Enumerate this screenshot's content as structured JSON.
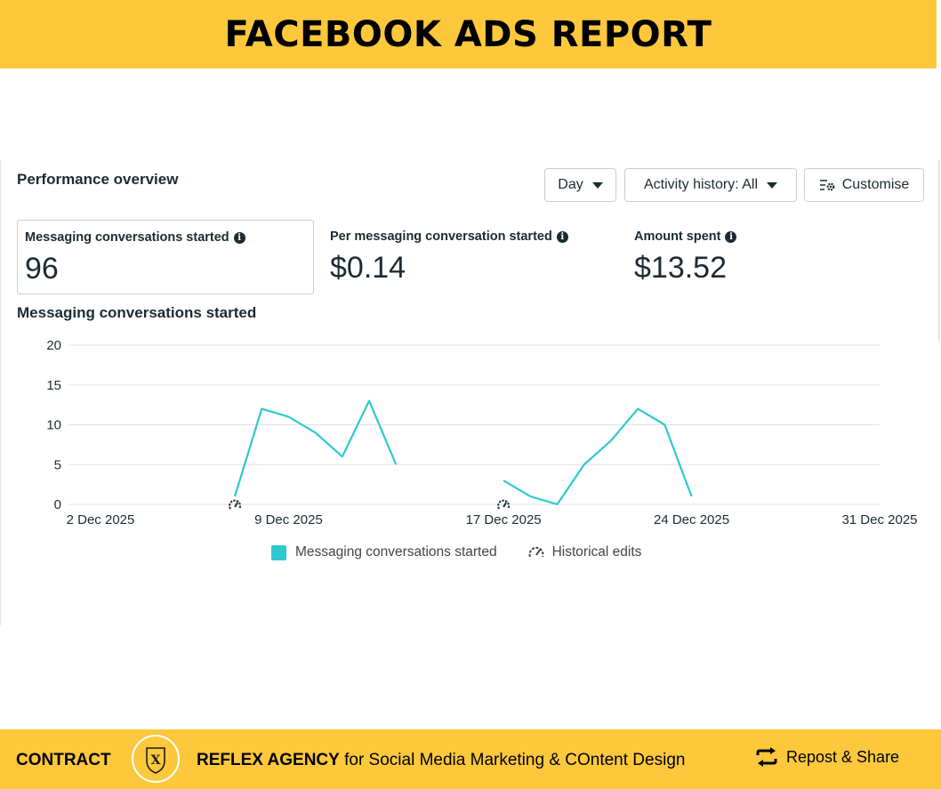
{
  "header": {
    "title": "FACEBOOK ADS REPORT"
  },
  "panel": {
    "title": "Performance overview",
    "buttons": {
      "day": "Day",
      "activity": "Activity history: All",
      "customise": "Customise"
    },
    "metrics": [
      {
        "label": "Messaging conversations started",
        "value": "96"
      },
      {
        "label": "Per messaging conversation started",
        "value": "$0.14"
      },
      {
        "label": "Amount spent",
        "value": "$13.52"
      }
    ]
  },
  "chart_data": {
    "type": "line",
    "title": "Messaging conversations started",
    "x_tick_labels": [
      "2 Dec 2025",
      "9 Dec 2025",
      "17 Dec 2025",
      "24 Dec 2025",
      "31 Dec 2025"
    ],
    "y_tick_labels": [
      "0",
      "5",
      "10",
      "15",
      "20"
    ],
    "ylim": [
      0,
      20
    ],
    "xlim_days": [
      2,
      31
    ],
    "grid": true,
    "series": [
      {
        "name": "Messaging conversations started",
        "color": "#2ec9cf",
        "segments": [
          {
            "x": [
              7,
              8,
              9,
              10,
              11,
              12,
              13
            ],
            "y": [
              1,
              12,
              11,
              9,
              6,
              13,
              5
            ]
          },
          {
            "x": [
              17,
              18,
              19,
              20,
              21,
              22,
              23,
              24
            ],
            "y": [
              3,
              1,
              0,
              5,
              8,
              12,
              10,
              1
            ]
          }
        ]
      }
    ],
    "historical_edit_days": [
      7,
      17
    ],
    "legend": {
      "position": "bottom",
      "series_label": "Messaging conversations started",
      "edits_label": "Historical edits"
    }
  },
  "footer": {
    "contract": "CONTRACT",
    "agency_bold": "REFLEX AGENCY",
    "agency_rest": " for Social Media Marketing & COntent Design",
    "repost": "Repost & Share",
    "logo_letter": "X"
  }
}
